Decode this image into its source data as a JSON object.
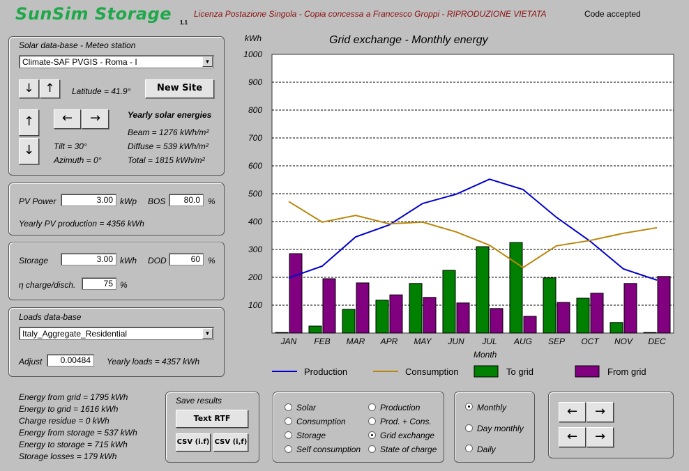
{
  "header": {
    "app_title": "SunSim Storage",
    "version": "1.1",
    "license": "Licenza Postazione Singola - Copia concessa a Francesco Groppi - RIPRODUZIONE VIETATA",
    "code_status": "Code accepted",
    "title_color": "#1fa84a",
    "license_color": "#8b1010"
  },
  "solar_db": {
    "title": "Solar data-base - Meteo station",
    "station": "Climate-SAF PVGIS - Roma - I",
    "latitude": "Latitude = 41.9°",
    "new_site": "New Site",
    "down_arrow": "↓",
    "up_arrow": "↑",
    "left_arrow": "←",
    "right_arrow": "→",
    "tilt": "Tilt =   30°",
    "azimuth": "Azimuth =    0°",
    "yearly_title": "Yearly solar energies",
    "beam": "Beam  = 1276 kWh/m²",
    "diffuse": "Diffuse = 539 kWh/m²",
    "total": "Total = 1815 kWh/m²"
  },
  "pv": {
    "power_label": "PV Power",
    "power_value": "3.00",
    "power_unit": "kWp",
    "bos_label": "BOS",
    "bos_value": "80.0",
    "bos_unit": "%",
    "yearly": "Yearly PV production = 4356 kWh"
  },
  "storage": {
    "label": "Storage",
    "value": "3.00",
    "unit": "kWh",
    "dod_label": "DOD",
    "dod_value": "60",
    "dod_unit": "%",
    "eta_label": "η charge/disch.",
    "eta_value": "75",
    "eta_unit": "%"
  },
  "loads": {
    "title": "Loads data-base",
    "profile": "Italy_Aggregate_Residential",
    "adjust_label": "Adjust",
    "adjust_value": "0.00484",
    "yearly": "Yearly loads = 4357 kWh"
  },
  "summary": [
    "Energy from grid = 1795 kWh",
    "Energy to grid = 1616 kWh",
    "Charge residue = 0 kWh",
    "Energy from storage = 537 kWh",
    "Energy to storage = 715 kWh",
    "Storage losses = 179 kWh"
  ],
  "save": {
    "title": "Save results",
    "text_rtf": "Text RTF",
    "csv_if": "CSV (i.f)",
    "csv_i_f": "CSV (i,f)"
  },
  "plot_options": {
    "col1": [
      {
        "label": "Solar",
        "selected": false
      },
      {
        "label": "Consumption",
        "selected": false
      },
      {
        "label": "Storage",
        "selected": false
      },
      {
        "label": "Self consumption",
        "selected": false
      }
    ],
    "col2": [
      {
        "label": "Production",
        "selected": false
      },
      {
        "label": "Prod. + Cons.",
        "selected": false
      },
      {
        "label": "Grid exchange",
        "selected": true
      },
      {
        "label": "State of charge",
        "selected": false
      }
    ]
  },
  "period_options": [
    {
      "label": "Monthly",
      "selected": true
    },
    {
      "label": "Day monthly",
      "selected": false
    },
    {
      "label": "Daily",
      "selected": false
    }
  ],
  "nav": {
    "left": "←",
    "right": "→"
  },
  "chart_data": {
    "type": "bar",
    "title": "Grid exchange - Monthly energy",
    "ylabel": "kWh",
    "xlabel": "Month",
    "ylim": [
      0,
      1000
    ],
    "yticks": [
      100,
      200,
      300,
      400,
      500,
      600,
      700,
      800,
      900,
      1000
    ],
    "grid": true,
    "legend_position": "bottom",
    "categories": [
      "JAN",
      "FEB",
      "MAR",
      "APR",
      "MAY",
      "JUN",
      "JUL",
      "AUG",
      "SEP",
      "OCT",
      "NOV",
      "DEC"
    ],
    "series": [
      {
        "name": "To grid",
        "kind": "bar",
        "color": "#008000",
        "values": [
          2,
          25,
          85,
          118,
          178,
          225,
          310,
          325,
          198,
          125,
          38,
          2
        ]
      },
      {
        "name": "From grid",
        "kind": "bar",
        "color": "#800080",
        "values": [
          285,
          195,
          180,
          137,
          128,
          108,
          88,
          60,
          110,
          143,
          178,
          203
        ]
      },
      {
        "name": "Production",
        "kind": "line",
        "color": "#0000cc",
        "values": [
          198,
          240,
          345,
          388,
          465,
          498,
          552,
          515,
          415,
          330,
          230,
          190
        ]
      },
      {
        "name": "Consumption",
        "kind": "line",
        "color": "#b8860b",
        "values": [
          472,
          398,
          422,
          392,
          398,
          363,
          315,
          235,
          313,
          332,
          358,
          378
        ]
      }
    ]
  }
}
